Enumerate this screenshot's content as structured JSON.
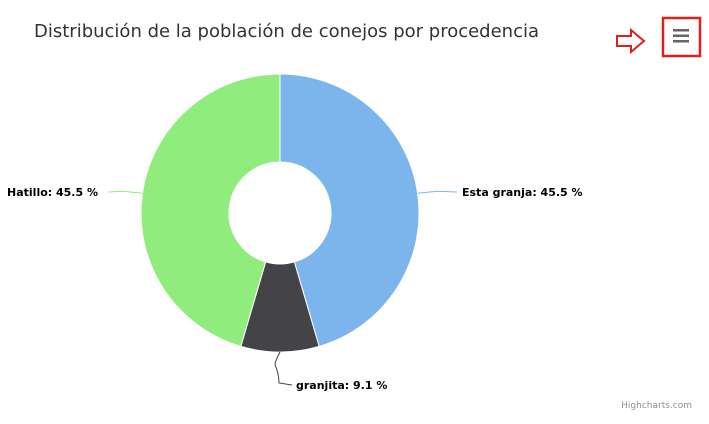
{
  "chart_data": {
    "type": "pie",
    "title": "Distribución de la población de conejos por procedencia",
    "series": [
      {
        "name": "Esta granja",
        "value": 45.5,
        "label": "Esta granja: 45.5 %",
        "color": "#7cb5ec"
      },
      {
        "name": "granjita",
        "value": 9.1,
        "label": "granjita: 9.1 %",
        "color": "#434348"
      },
      {
        "name": "Hatillo",
        "value": 45.5,
        "label": "Hatillo: 45.5 %",
        "color": "#90ed7d"
      }
    ],
    "inner_size": "donut",
    "legend": "none",
    "credits": "Highcharts.com"
  },
  "toolbar": {
    "menu_icon": "hamburger-menu-icon",
    "arrow_icon": "arrow-right-outline-icon",
    "highlight_color": "#e0201a"
  }
}
